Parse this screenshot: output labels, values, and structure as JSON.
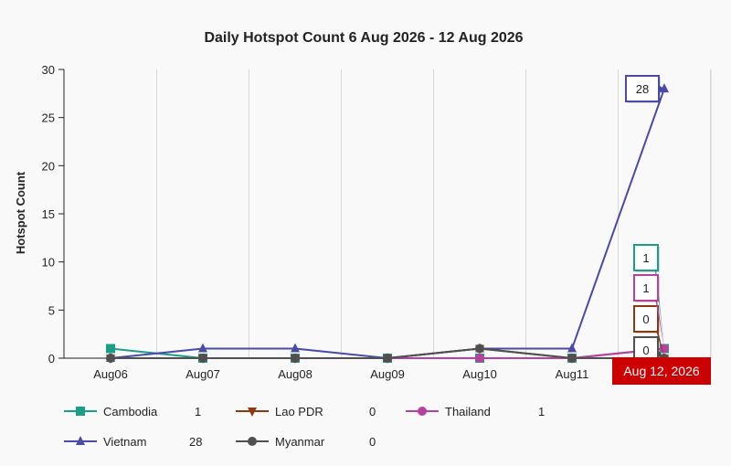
{
  "chart_data": {
    "type": "line",
    "title": "Daily Hotspot Count 6 Aug 2026 - 12 Aug 2026",
    "xlabel": "",
    "ylabel": "Hotspot Count",
    "ylim": [
      0,
      30
    ],
    "yticks": [
      0,
      5,
      10,
      15,
      20,
      25,
      30
    ],
    "categories": [
      "Aug06",
      "Aug07",
      "Aug08",
      "Aug09",
      "Aug10",
      "Aug11",
      "Aug12"
    ],
    "x_tick_labels": [
      "Aug06",
      "Aug07",
      "Aug08",
      "Aug09",
      "Aug10",
      "Aug11",
      ""
    ],
    "grid": "vertical",
    "legend_position": "bottom",
    "series": [
      {
        "name": "Cambodia",
        "color": "#1a9e85",
        "marker": "square",
        "values": [
          1,
          0,
          0,
          0,
          0,
          0,
          1
        ],
        "legend_value": "1",
        "callout": "1"
      },
      {
        "name": "Lao PDR",
        "color": "#8b3a10",
        "marker": "triangle-down",
        "values": [
          0,
          0,
          0,
          0,
          1,
          0,
          0
        ],
        "legend_value": "0",
        "callout": "0"
      },
      {
        "name": "Thailand",
        "color": "#b8419e",
        "marker": "circle",
        "values": [
          0,
          0,
          0,
          0,
          0,
          0,
          1
        ],
        "legend_value": "1",
        "callout": "1"
      },
      {
        "name": "Vietnam",
        "color": "#4a4aa8",
        "marker": "triangle-up",
        "values": [
          0,
          1,
          1,
          0,
          1,
          1,
          28
        ],
        "legend_value": "28",
        "callout": "28"
      },
      {
        "name": "Myanmar",
        "color": "#505050",
        "marker": "circle",
        "values": [
          0,
          0,
          0,
          0,
          1,
          0,
          0
        ],
        "legend_value": "0",
        "callout": "0"
      }
    ],
    "tooltip": {
      "label": "Aug 12, 2026",
      "color": "#cc0000"
    }
  }
}
